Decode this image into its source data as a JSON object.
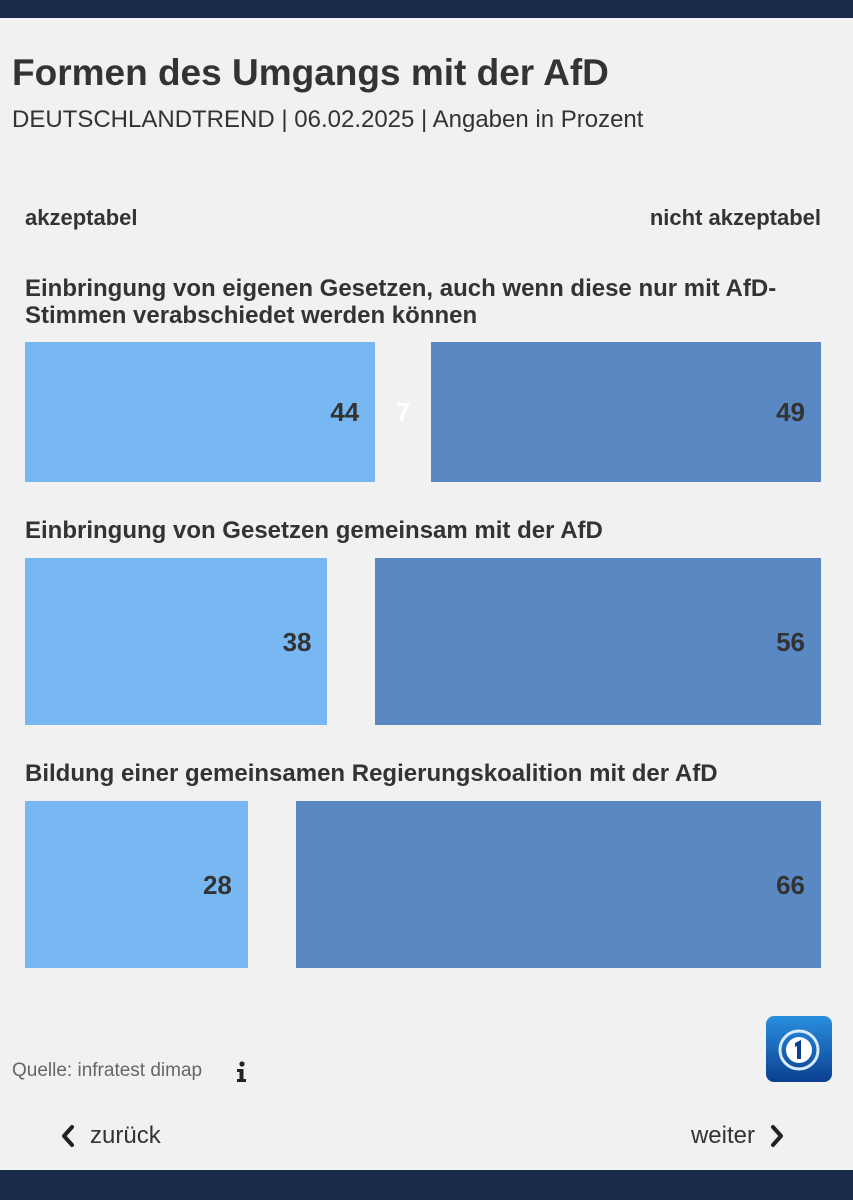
{
  "header": {
    "title": "Formen des Umgangs mit der AfD",
    "subtitle": "DEUTSCHLANDTREND | 06.02.2025 | Angaben in Prozent"
  },
  "legend": {
    "left": "akzeptabel",
    "right": "nicht akzeptabel"
  },
  "colors": {
    "akzeptabel": "#77b8f3",
    "nicht_akzeptabel": "#5a88c2",
    "background": "#f1f1f1",
    "bar_navy": "#1a2a4a"
  },
  "chart_data": {
    "type": "bar",
    "stacked": true,
    "orientation": "horizontal",
    "categories": [
      "Einbringung von eigenen Gesetzen, auch wenn diese nur mit AfD-Stimmen verabschiedet werden können",
      "Einbringung von Gesetzen gemeinsam mit der AfD",
      "Bildung einer gemeinsamen Regierungskoalition mit der AfD"
    ],
    "series": [
      {
        "name": "akzeptabel",
        "values": [
          44,
          38,
          28
        ]
      },
      {
        "name": "",
        "values": [
          7,
          6,
          6
        ]
      },
      {
        "name": "nicht akzeptabel",
        "values": [
          49,
          56,
          66
        ]
      }
    ],
    "data_labels": [
      [
        "44",
        "7",
        "49"
      ],
      [
        "38",
        "",
        "56"
      ],
      [
        "28",
        "",
        "66"
      ]
    ],
    "xlim": [
      0,
      100
    ],
    "legend": "top"
  },
  "footer": {
    "source": "Quelle: infratest dimap",
    "back_label": "zurück",
    "next_label": "weiter"
  }
}
